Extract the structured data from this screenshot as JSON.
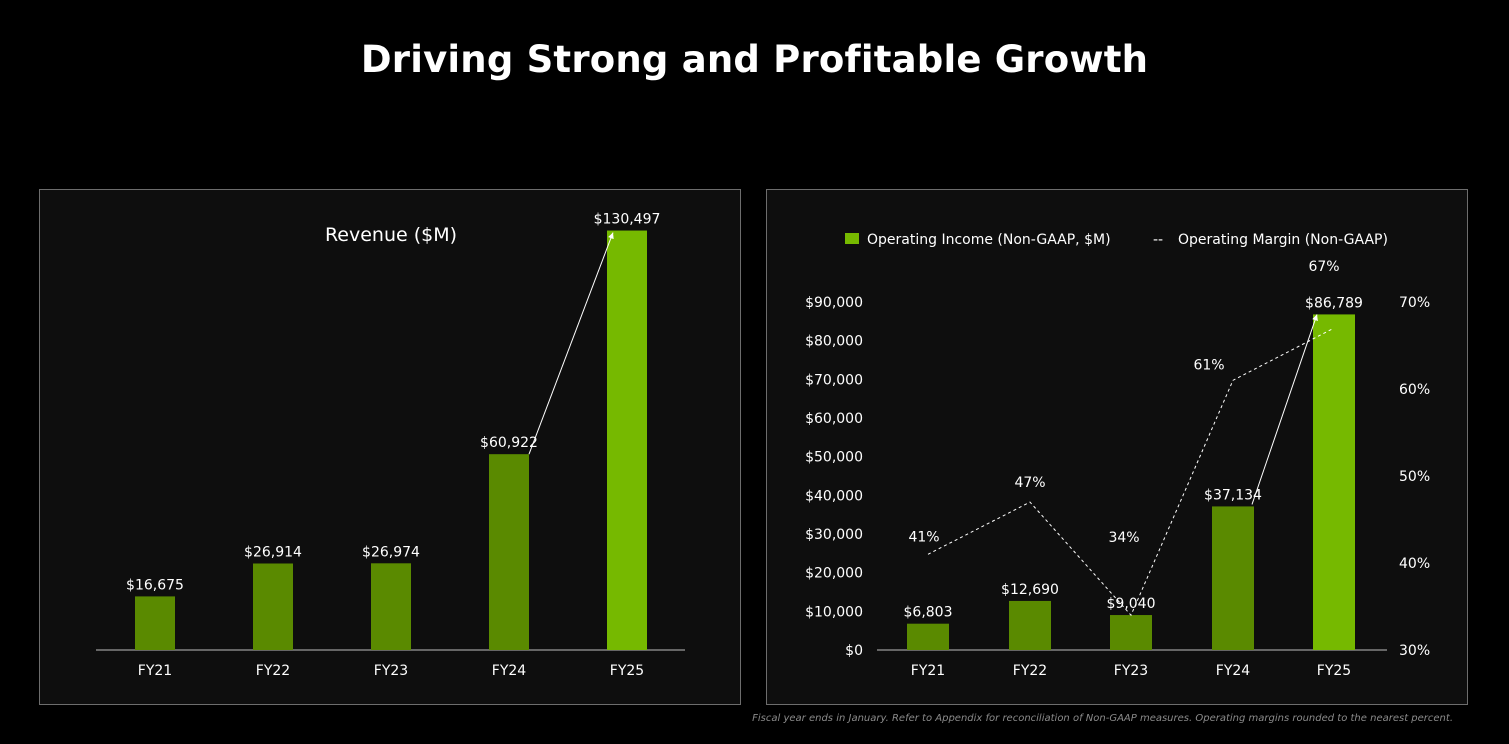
{
  "title": "Driving Strong and Profitable Growth",
  "footnote": "Fiscal year ends in January. Refer to Appendix for reconciliation of Non-GAAP measures. Operating margins rounded to the nearest percent.",
  "colors": {
    "background": "#000000",
    "panel": "#0e0e0e",
    "bar_dark": "#5a8a00",
    "bar_highlight": "#76b900",
    "text": "#ffffff"
  },
  "chart_data": [
    {
      "type": "bar",
      "title": "Revenue ($M)",
      "categories": [
        "FY21",
        "FY22",
        "FY23",
        "FY24",
        "FY25"
      ],
      "values": [
        16675,
        26914,
        26974,
        60922,
        130497
      ],
      "value_labels": [
        "$16,675",
        "$26,914",
        "$26,974",
        "$60,922",
        "$130,497"
      ],
      "ylim": [
        0,
        140000
      ],
      "highlight_index": 4,
      "arrow": {
        "from": "FY24",
        "to": "FY25"
      },
      "grid": false
    },
    {
      "type": "bar",
      "legend": {
        "position": "top",
        "entries": [
          {
            "label": "Operating Income (Non-GAAP, $M)",
            "marker": "square"
          },
          {
            "label": "Operating Margin (Non-GAAP)",
            "marker": "--"
          }
        ]
      },
      "categories": [
        "FY21",
        "FY22",
        "FY23",
        "FY24",
        "FY25"
      ],
      "series": [
        {
          "name": "Operating Income (Non-GAAP, $M)",
          "type": "bar",
          "axis": "left",
          "values": [
            6803,
            12690,
            9040,
            37134,
            86789
          ],
          "value_labels": [
            "$6,803",
            "$12,690",
            "$9,040",
            "$37,134",
            "$86,789"
          ]
        },
        {
          "name": "Operating Margin (Non-GAAP)",
          "type": "line",
          "style": "dashed",
          "axis": "right",
          "values": [
            41,
            47,
            34,
            61,
            67
          ],
          "value_labels": [
            "41%",
            "47%",
            "34%",
            "61%",
            "67%"
          ]
        }
      ],
      "y_left": {
        "ylim": [
          0,
          90000
        ],
        "ticks": [
          "$0",
          "$10,000",
          "$20,000",
          "$30,000",
          "$40,000",
          "$50,000",
          "$60,000",
          "$70,000",
          "$80,000",
          "$90,000"
        ]
      },
      "y_right": {
        "ylim": [
          30,
          70
        ],
        "ticks": [
          "30%",
          "40%",
          "50%",
          "60%",
          "70%"
        ]
      },
      "highlight_index": 4,
      "arrow": {
        "from": "FY24",
        "to": "FY25"
      },
      "grid": false
    }
  ]
}
